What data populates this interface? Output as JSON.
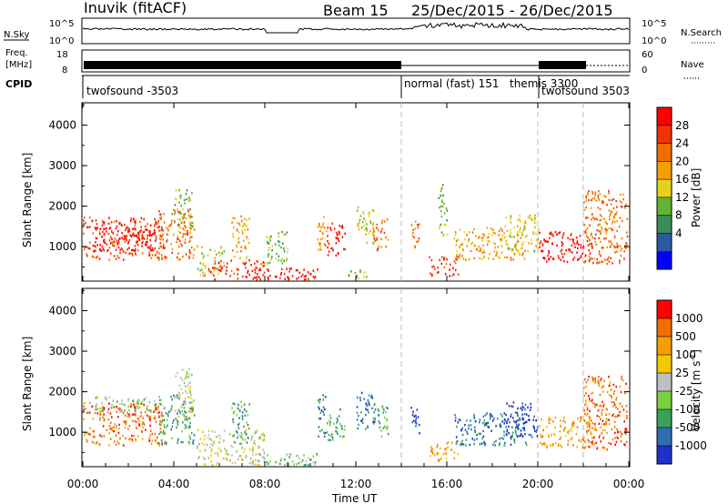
{
  "header": {
    "station": "Inuvik (fitACF)",
    "beam_label": "Beam 15",
    "date_range": "25/Dec/2015 - 26/Dec/2015"
  },
  "strip_labels": {
    "nsky": "N.Sky",
    "nsky_ticks": [
      "10^5",
      "10^0"
    ],
    "nsearch": "N.Search",
    "nsearch_ticks": [
      "10^5",
      "10^0"
    ],
    "freq_line1": "Freq.",
    "freq_line2": "[MHz]",
    "freq_ticks": [
      "18",
      "8"
    ],
    "nave": "Nave",
    "nave_ticks": [
      "60",
      "0"
    ],
    "cpid": "CPID"
  },
  "cpid_segments": [
    {
      "label": "twofsound -3503",
      "start_hour": 0,
      "end_hour": 14
    },
    {
      "label": "normal (fast) 151",
      "start_hour": 14,
      "end_hour": 19
    },
    {
      "label": "themis 3300",
      "start_hour": 19,
      "end_hour": 20
    },
    {
      "label": "twofsound 3503",
      "start_hour": 20,
      "end_hour": 24
    }
  ],
  "colors": {
    "power": [
      "#0000ff",
      "#2c5aa0",
      "#3b8c5a",
      "#64b432",
      "#e6d21e",
      "#f5a000",
      "#f06e00",
      "#f03200",
      "#ff0000"
    ],
    "velocity": [
      "#1e32c8",
      "#2f6fb0",
      "#3aa05a",
      "#7bd040",
      "#c0c0c0",
      "#f5c800",
      "#f5a000",
      "#f06e00",
      "#ff0000"
    ],
    "ground_scatter": "#c0c0c0"
  },
  "chart_data": [
    {
      "type": "heatmap",
      "name": "power",
      "ylabel": "Slant Range [km]",
      "yticks": [
        "1000",
        "2000",
        "3000",
        "4000"
      ],
      "ylim": [
        150,
        4550
      ],
      "x_hours_range": [
        0,
        24
      ],
      "colorbar_label": "Power [dB]",
      "colorbar_ticks": [
        "4",
        "8",
        "12",
        "16",
        "20",
        "24",
        "28"
      ],
      "colorbar_range": [
        0,
        32
      ],
      "blobs": [
        {
          "t0": 0.0,
          "t1": 3.6,
          "r0": 700,
          "r1": 1750,
          "c": 7
        },
        {
          "t0": 0.5,
          "t1": 3.2,
          "r0": 900,
          "r1": 1500,
          "c": 8
        },
        {
          "t0": 3.3,
          "t1": 4.9,
          "r0": 700,
          "r1": 1950,
          "c": 6
        },
        {
          "t0": 4.0,
          "t1": 4.8,
          "r0": 1400,
          "r1": 2500,
          "c": 3
        },
        {
          "t0": 5.0,
          "t1": 6.2,
          "r0": 300,
          "r1": 1050,
          "c": 4
        },
        {
          "t0": 5.5,
          "t1": 8.0,
          "r0": 200,
          "r1": 700,
          "c": 7
        },
        {
          "t0": 6.5,
          "t1": 7.3,
          "r0": 700,
          "r1": 1800,
          "c": 5
        },
        {
          "t0": 7.7,
          "t1": 10.4,
          "r0": 200,
          "r1": 500,
          "c": 8
        },
        {
          "t0": 8.0,
          "t1": 9.0,
          "r0": 600,
          "r1": 1400,
          "c": 3
        },
        {
          "t0": 10.3,
          "t1": 10.7,
          "r0": 900,
          "r1": 2000,
          "c": 5
        },
        {
          "t0": 10.7,
          "t1": 11.5,
          "r0": 800,
          "r1": 1600,
          "c": 8
        },
        {
          "t0": 11.6,
          "t1": 12.5,
          "r0": 200,
          "r1": 450,
          "c": 3
        },
        {
          "t0": 12.0,
          "t1": 12.8,
          "r0": 1100,
          "r1": 2000,
          "c": 4
        },
        {
          "t0": 12.7,
          "t1": 13.4,
          "r0": 900,
          "r1": 1700,
          "c": 6
        },
        {
          "t0": 14.4,
          "t1": 14.8,
          "r0": 1000,
          "r1": 1700,
          "c": 6
        },
        {
          "t0": 15.2,
          "t1": 16.5,
          "r0": 300,
          "r1": 800,
          "c": 7
        },
        {
          "t0": 15.6,
          "t1": 16.0,
          "r0": 1300,
          "r1": 2600,
          "c": 3
        },
        {
          "t0": 16.3,
          "t1": 19.5,
          "r0": 700,
          "r1": 1500,
          "c": 5
        },
        {
          "t0": 18.5,
          "t1": 20.0,
          "r0": 900,
          "r1": 1800,
          "c": 4
        },
        {
          "t0": 20.0,
          "t1": 22.5,
          "r0": 650,
          "r1": 1400,
          "c": 8
        },
        {
          "t0": 22.0,
          "t1": 24.0,
          "r0": 600,
          "r1": 2400,
          "c": 6
        }
      ]
    },
    {
      "type": "heatmap",
      "name": "velocity",
      "ylabel": "Slant Range [km]",
      "yticks": [
        "1000",
        "2000",
        "3000",
        "4000"
      ],
      "ylim": [
        150,
        4550
      ],
      "xlabel": "Time UT",
      "xticks": [
        "00:00",
        "04:00",
        "08:00",
        "12:00",
        "16:00",
        "20:00",
        "00:00"
      ],
      "xtick_hours": [
        0,
        4,
        8,
        12,
        16,
        20,
        24
      ],
      "dashed_hours": [
        14,
        20,
        22
      ],
      "colorbar_label": "Velocity [m s",
      "colorbar_label_sup": "-1",
      "colorbar_label_end": "]",
      "colorbar_ticks": [
        "1000",
        "500",
        "100",
        "25",
        "-25",
        "-100",
        "-500",
        "-1000"
      ],
      "blobs": [
        {
          "t0": 0.0,
          "t1": 3.6,
          "r0": 700,
          "r1": 1750,
          "c": 7
        },
        {
          "t0": 0.5,
          "t1": 3.2,
          "r0": 1500,
          "r1": 1900,
          "c": 3
        },
        {
          "t0": 3.3,
          "t1": 4.9,
          "r0": 700,
          "r1": 1950,
          "c": 2
        },
        {
          "t0": 4.0,
          "t1": 4.8,
          "r0": 1400,
          "r1": 2600,
          "c": 4
        },
        {
          "t0": 5.0,
          "t1": 8.0,
          "r0": 200,
          "r1": 1100,
          "c": 4
        },
        {
          "t0": 6.5,
          "t1": 7.3,
          "r0": 700,
          "r1": 1800,
          "c": 2
        },
        {
          "t0": 7.7,
          "t1": 10.4,
          "r0": 200,
          "r1": 500,
          "c": 3
        },
        {
          "t0": 10.3,
          "t1": 10.7,
          "r0": 900,
          "r1": 2000,
          "c": 1
        },
        {
          "t0": 10.7,
          "t1": 11.5,
          "r0": 800,
          "r1": 1600,
          "c": 2
        },
        {
          "t0": 12.0,
          "t1": 12.8,
          "r0": 1100,
          "r1": 2000,
          "c": 1
        },
        {
          "t0": 12.7,
          "t1": 13.4,
          "r0": 900,
          "r1": 1700,
          "c": 2
        },
        {
          "t0": 14.4,
          "t1": 14.8,
          "r0": 1000,
          "r1": 1700,
          "c": 0
        },
        {
          "t0": 15.2,
          "t1": 16.5,
          "r0": 300,
          "r1": 800,
          "c": 6
        },
        {
          "t0": 16.3,
          "t1": 19.5,
          "r0": 700,
          "r1": 1500,
          "c": 1
        },
        {
          "t0": 18.5,
          "t1": 20.0,
          "r0": 900,
          "r1": 1800,
          "c": 0
        },
        {
          "t0": 20.0,
          "t1": 22.5,
          "r0": 650,
          "r1": 1400,
          "c": 6
        },
        {
          "t0": 22.0,
          "t1": 24.0,
          "r0": 600,
          "r1": 2400,
          "c": 7
        }
      ]
    }
  ]
}
